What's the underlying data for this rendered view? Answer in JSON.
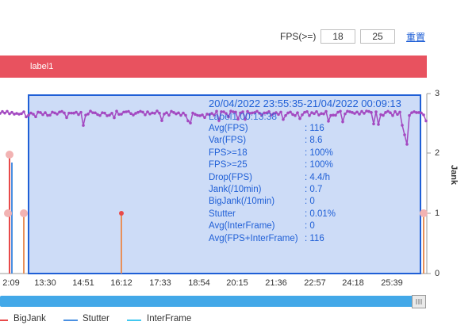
{
  "filter": {
    "label": "FPS(>=)",
    "value1": "18",
    "value2": "25",
    "reset_label": "重置"
  },
  "label_bar": {
    "text": "label1",
    "color": "#e8525f"
  },
  "chart": {
    "x_ticks": [
      "2:09",
      "13:30",
      "14:51",
      "16:12",
      "17:33",
      "18:54",
      "20:15",
      "21:36",
      "22:57",
      "24:18",
      "25:39"
    ],
    "y_right_ticks": [
      "3",
      "2",
      "1",
      "0"
    ],
    "y_right_title": "Jank",
    "colors": {
      "fps_line": "#a349c1",
      "selection_fill": "#cddcf7",
      "selection_border": "#1f5fd6",
      "bigjank": "#e84a4a",
      "stutter": "#4a90e2",
      "interframe": "#42c8f0"
    }
  },
  "tooltip": {
    "title": "20/04/2022 23:55:35-21/04/2022 00:09:13",
    "subtitle": "Label1 00:13:38",
    "rows": [
      {
        "k": "Avg(FPS)",
        "v": ": 116"
      },
      {
        "k": "Var(FPS)",
        "v": ": 8.6"
      },
      {
        "k": "FPS>=18",
        "v": ": 100%"
      },
      {
        "k": "FPS>=25",
        "v": ": 100%"
      },
      {
        "k": "Drop(FPS)",
        "v": ": 4.4/h"
      },
      {
        "k": "Jank(/10min)",
        "v": ": 0.7"
      },
      {
        "k": "BigJank(/10min)",
        "v": ": 0"
      },
      {
        "k": "Stutter",
        "v": ": 0.01%"
      },
      {
        "k": "Avg(InterFrame)",
        "v": ": 0"
      },
      {
        "k": "Avg(FPS+InterFrame)",
        "v": ": 116"
      }
    ]
  },
  "legend": [
    {
      "name": "BigJank",
      "color": "#e84a4a"
    },
    {
      "name": "Stutter",
      "color": "#4a90e2"
    },
    {
      "name": "InterFrame",
      "color": "#42c8f0"
    }
  ]
}
